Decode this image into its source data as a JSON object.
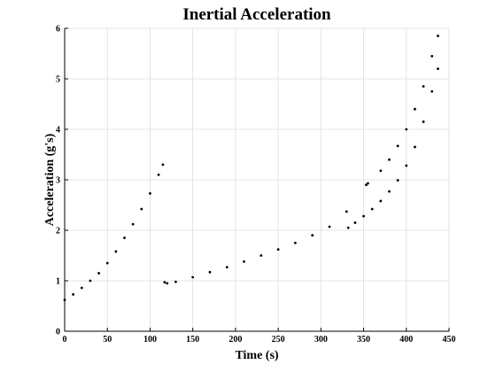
{
  "chart_data": {
    "type": "scatter",
    "title": "Inertial Acceleration",
    "xlabel": "Time (s)",
    "ylabel": "Acceleration (g's)",
    "xlim": [
      0,
      450
    ],
    "ylim": [
      0,
      6
    ],
    "xticks": [
      0,
      50,
      100,
      150,
      200,
      250,
      300,
      350,
      400,
      450
    ],
    "yticks": [
      0,
      1,
      2,
      3,
      4,
      5,
      6
    ],
    "grid": true,
    "series": [
      {
        "color": "#000000",
        "points": [
          [
            0,
            0.62
          ],
          [
            10,
            0.73
          ],
          [
            20,
            0.86
          ],
          [
            30,
            1.0
          ],
          [
            40,
            1.15
          ],
          [
            50,
            1.35
          ],
          [
            60,
            1.58
          ],
          [
            70,
            1.85
          ],
          [
            80,
            2.12
          ],
          [
            90,
            2.42
          ],
          [
            100,
            2.73
          ],
          [
            110,
            3.1
          ],
          [
            115,
            3.3
          ],
          [
            117,
            0.97
          ],
          [
            120,
            0.95
          ],
          [
            130,
            0.98
          ],
          [
            150,
            1.07
          ],
          [
            170,
            1.17
          ],
          [
            190,
            1.27
          ],
          [
            210,
            1.38
          ],
          [
            230,
            1.5
          ],
          [
            250,
            1.62
          ],
          [
            270,
            1.75
          ],
          [
            290,
            1.9
          ],
          [
            310,
            2.07
          ],
          [
            330,
            2.37
          ],
          [
            332,
            2.05
          ],
          [
            340,
            2.15
          ],
          [
            350,
            2.28
          ],
          [
            360,
            2.42
          ],
          [
            370,
            2.58
          ],
          [
            380,
            2.77
          ],
          [
            390,
            2.99
          ],
          [
            400,
            3.28
          ],
          [
            410,
            3.65
          ],
          [
            420,
            4.15
          ],
          [
            430,
            4.75
          ],
          [
            437,
            5.2
          ],
          [
            353,
            2.9
          ],
          [
            355,
            2.93
          ],
          [
            370,
            3.18
          ],
          [
            380,
            3.4
          ],
          [
            390,
            3.67
          ],
          [
            400,
            4.0
          ],
          [
            410,
            4.4
          ],
          [
            420,
            4.85
          ],
          [
            430,
            5.45
          ],
          [
            437,
            5.85
          ]
        ]
      }
    ]
  }
}
